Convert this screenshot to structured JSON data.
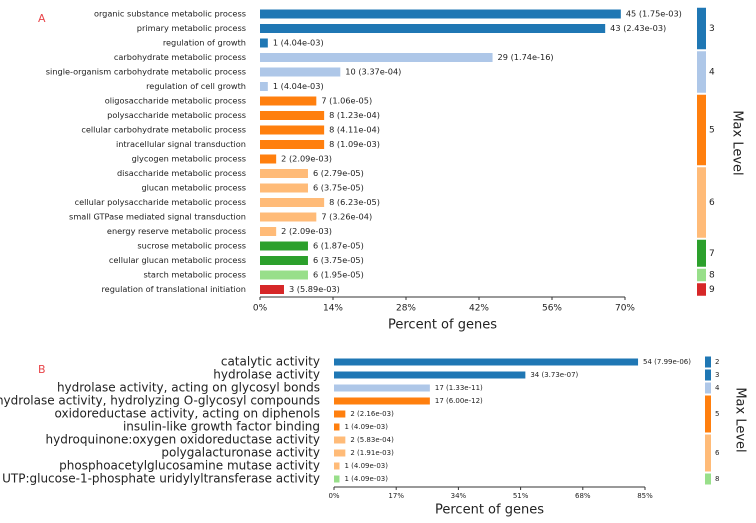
{
  "chart_data": [
    {
      "panel_label": "A",
      "type": "bar",
      "orientation": "horizontal",
      "xlabel": "Percent of genes",
      "xlim": [
        0,
        70
      ],
      "xticks": [
        "0%",
        "14%",
        "28%",
        "42%",
        "56%",
        "70%"
      ],
      "level_axis_label": "Max Level",
      "categories": [
        "organic substance metabolic process",
        "primary metabolic process",
        "regulation of growth",
        "carbohydrate metabolic process",
        "single-organism carbohydrate metabolic process",
        "regulation of cell growth",
        "oligosaccharide metabolic process",
        "polysaccharide metabolic process",
        "cellular carbohydrate metabolic process",
        "intracellular signal transduction",
        "glycogen metabolic process",
        "disaccharide metabolic process",
        "glucan metabolic process",
        "cellular polysaccharide metabolic process",
        "small GTPase mediated signal transduction",
        "energy reserve metabolic process",
        "sucrose metabolic process",
        "cellular glucan metabolic process",
        "starch metabolic process",
        "regulation of translational initiation"
      ],
      "values": [
        69.2,
        66.2,
        1.5,
        44.6,
        15.4,
        1.5,
        10.8,
        12.3,
        12.3,
        12.3,
        3.1,
        9.2,
        9.2,
        12.3,
        10.8,
        3.1,
        9.2,
        9.2,
        9.2,
        4.6
      ],
      "data_labels": [
        "45 (1.75e-03)",
        "43 (2.43e-03)",
        "1 (4.04e-03)",
        "29 (1.74e-16)",
        "10 (3.37e-04)",
        "1 (4.04e-03)",
        "7 (1.06e-05)",
        "8 (1.23e-04)",
        "8 (4.11e-04)",
        "8 (1.09e-03)",
        "2 (2.09e-03)",
        "6 (2.79e-05)",
        "6 (3.75e-05)",
        "8 (6.23e-05)",
        "7 (3.26e-04)",
        "2 (2.09e-03)",
        "6 (1.87e-05)",
        "6 (3.75e-05)",
        "6 (1.95e-05)",
        "3 (5.89e-03)"
      ],
      "max_level": [
        3,
        3,
        3,
        4,
        4,
        4,
        5,
        5,
        5,
        5,
        5,
        6,
        6,
        6,
        6,
        6,
        7,
        7,
        8,
        9
      ],
      "level_groups": [
        {
          "level": "3",
          "first": 0,
          "last": 2
        },
        {
          "level": "4",
          "first": 3,
          "last": 5
        },
        {
          "level": "5",
          "first": 6,
          "last": 10
        },
        {
          "level": "6",
          "first": 11,
          "last": 15
        },
        {
          "level": "7",
          "first": 16,
          "last": 17
        },
        {
          "level": "8",
          "first": 18,
          "last": 18
        },
        {
          "level": "9",
          "first": 19,
          "last": 19
        }
      ]
    },
    {
      "panel_label": "B",
      "type": "bar",
      "orientation": "horizontal",
      "xlabel": "Percent of genes",
      "xlim": [
        0,
        85
      ],
      "xticks": [
        "0%",
        "17%",
        "34%",
        "51%",
        "68%",
        "85%"
      ],
      "level_axis_label": "Max Level",
      "categories": [
        "catalytic activity",
        "hydrolase activity",
        "hydrolase activity, acting on glycosyl bonds",
        "hydrolase activity, hydrolyzing O-glycosyl compounds",
        "oxidoreductase activity, acting on diphenols",
        "insulin-like growth factor binding",
        "hydroquinone:oxygen oxidoreductase activity",
        "polygalacturonase activity",
        "phosphoacetylglucosamine mutase activity",
        "UTP:glucose-1-phosphate uridylyltransferase activity"
      ],
      "values": [
        83.1,
        52.3,
        26.2,
        26.2,
        3.1,
        1.5,
        3.1,
        3.1,
        1.5,
        1.5
      ],
      "data_labels": [
        "54 (7.99e-06)",
        "34 (3.73e-07)",
        "17 (1.33e-11)",
        "17 (6.00e-12)",
        "2 (2.16e-03)",
        "1 (4.09e-03)",
        "2 (5.83e-04)",
        "2 (1.91e-03)",
        "1 (4.09e-03)",
        "1 (4.09e-03)"
      ],
      "max_level": [
        2,
        3,
        4,
        5,
        5,
        5,
        6,
        6,
        6,
        8
      ],
      "level_groups": [
        {
          "level": "2",
          "first": 0,
          "last": 0
        },
        {
          "level": "3",
          "first": 1,
          "last": 1
        },
        {
          "level": "4",
          "first": 2,
          "last": 2
        },
        {
          "level": "5",
          "first": 3,
          "last": 5
        },
        {
          "level": "6",
          "first": 6,
          "last": 8
        },
        {
          "level": "8",
          "first": 9,
          "last": 9
        }
      ]
    }
  ],
  "colors": {
    "level_2": "#1f77b4",
    "level_3": "#1f77b4",
    "level_4": "#aec7e8",
    "level_5": "#ff7f0e",
    "level_6": "#ffbb78",
    "level_7": "#2ca02c",
    "level_8": "#98df8a",
    "level_9": "#d62728",
    "panel_label": "#e8454a",
    "axis": "#333333"
  }
}
